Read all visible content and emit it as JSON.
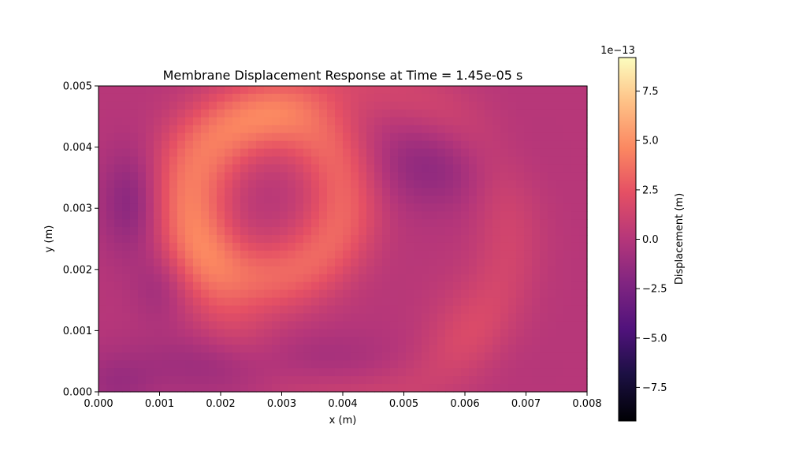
{
  "chart_data": {
    "type": "heatmap",
    "title": "Membrane Displacement Response at Time = 1.45e-05 s",
    "xlabel": "x (m)",
    "ylabel": "y (m)",
    "xlim": [
      0.0,
      0.008
    ],
    "ylim": [
      0.0,
      0.005
    ],
    "x_ticks": [
      "0.000",
      "0.001",
      "0.002",
      "0.003",
      "0.004",
      "0.005",
      "0.006",
      "0.007",
      "0.008"
    ],
    "y_ticks": [
      "0.000",
      "0.001",
      "0.002",
      "0.003",
      "0.004",
      "0.005"
    ],
    "colormap": "magma",
    "colorbar": {
      "label": "Displacement (m)",
      "offset_text": "1e−13",
      "range": [
        -9.2,
        9.2
      ],
      "ticks": [
        "−7.5",
        "−5.0",
        "−2.5",
        "0.0",
        "2.5",
        "5.0",
        "7.5"
      ],
      "tick_values": [
        -7.5,
        -5.0,
        -2.5,
        0.0,
        2.5,
        5.0,
        7.5
      ]
    },
    "features": [
      {
        "kind": "ring",
        "cx": 0.0027,
        "cy": 0.0032,
        "r": 0.0013,
        "width": 0.00045,
        "amplitude": 3.3
      },
      {
        "kind": "blob",
        "cx": 0.00055,
        "cy": 0.0031,
        "sx": 0.00035,
        "sy": 0.0006,
        "amplitude": -2.2
      },
      {
        "kind": "blob",
        "cx": 0.0055,
        "cy": 0.0037,
        "sx": 0.0008,
        "sy": 0.0005,
        "amplitude": -1.8
      },
      {
        "kind": "blob",
        "cx": 0.0028,
        "cy": 0.00045,
        "sx": 0.0017,
        "sy": 0.00035,
        "amplitude": -1.5
      },
      {
        "kind": "blob",
        "cx": 0.001,
        "cy": 0.0017,
        "sx": 0.0003,
        "sy": 0.0004,
        "amplitude": -1.0
      },
      {
        "kind": "blob",
        "cx": 0.0003,
        "cy": 0.0001,
        "sx": 0.0004,
        "sy": 0.0003,
        "amplitude": -1.0
      },
      {
        "kind": "arc",
        "cx": 0.0042,
        "cy": 0.0025,
        "r": 0.0025,
        "width": 0.0004,
        "amplitude": 1.3
      },
      {
        "kind": "blob",
        "cx": 0.0059,
        "cy": 0.0011,
        "sx": 0.00045,
        "sy": 0.0006,
        "amplitude": 0.6
      }
    ]
  }
}
